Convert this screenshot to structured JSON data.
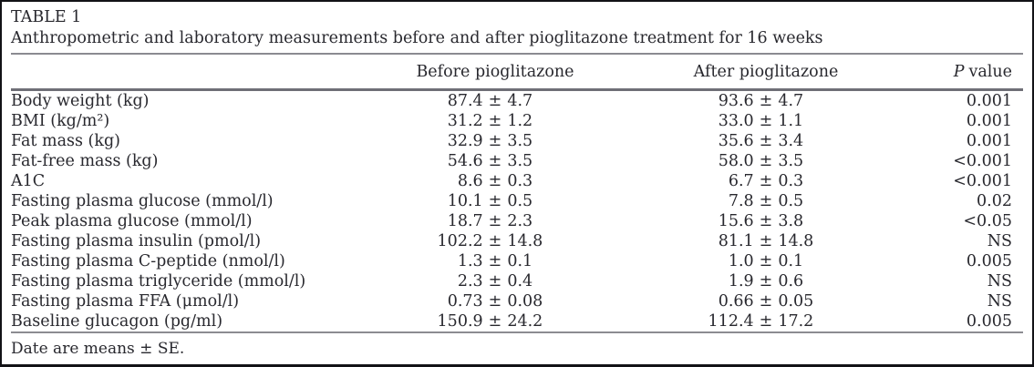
{
  "table": {
    "label": "TABLE 1",
    "caption": "Anthropometric and laboratory measurements before and after pioglitazone treatment for 16 weeks",
    "header": {
      "measure": "",
      "before": "Before pioglitazone",
      "after": "After pioglitazone",
      "p_italic": "P",
      "p_rest": "value"
    },
    "plus_minus": "±",
    "rows": [
      {
        "measure": "Body weight (kg)",
        "before": "87.4 ± 4.7",
        "after": "93.6 ± 4.7",
        "p": "0.001"
      },
      {
        "measure": "BMI (kg/m²)",
        "before": "31.2 ± 1.2",
        "after": "33.0 ± 1.1",
        "p": "0.001"
      },
      {
        "measure": "Fat mass (kg)",
        "before": "32.9 ± 3.5",
        "after": "35.6 ± 3.4",
        "p": "0.001"
      },
      {
        "measure": "Fat-free mass (kg)",
        "before": "54.6 ± 3.5",
        "after": "58.0 ± 3.5",
        "p": "<0.001"
      },
      {
        "measure": "A1C",
        "before": "8.6 ± 0.3",
        "after": "6.7 ± 0.3",
        "p": "<0.001"
      },
      {
        "measure": "Fasting plasma glucose (mmol/l)",
        "before": "10.1 ± 0.5",
        "after": "7.8 ± 0.5",
        "p": "0.02"
      },
      {
        "measure": "Peak plasma glucose (mmol/l)",
        "before": "18.7 ± 2.3",
        "after": "15.6 ± 3.8",
        "p": "<0.05"
      },
      {
        "measure": "Fasting plasma insulin (pmol/l)",
        "before": "102.2 ± 14.8",
        "after": "81.1 ± 14.8",
        "p": "NS"
      },
      {
        "measure": "Fasting plasma C-peptide (nmol/l)",
        "before": "1.3 ± 0.1",
        "after": "1.0 ± 0.1",
        "p": "0.005"
      },
      {
        "measure": "Fasting plasma triglyceride (mmol/l)",
        "before": "2.3 ± 0.4",
        "after": "1.9 ± 0.6",
        "p": "NS"
      },
      {
        "measure": "Fasting plasma FFA (μmol/l)",
        "before": "0.73 ± 0.08",
        "after": "0.66 ± 0.05",
        "p": "NS"
      },
      {
        "measure": "Baseline glucagon (pg/ml)",
        "before": "150.9 ± 24.2",
        "after": "112.4 ± 17.2",
        "p": "0.005"
      }
    ],
    "footnote": "Date are means ± SE."
  }
}
